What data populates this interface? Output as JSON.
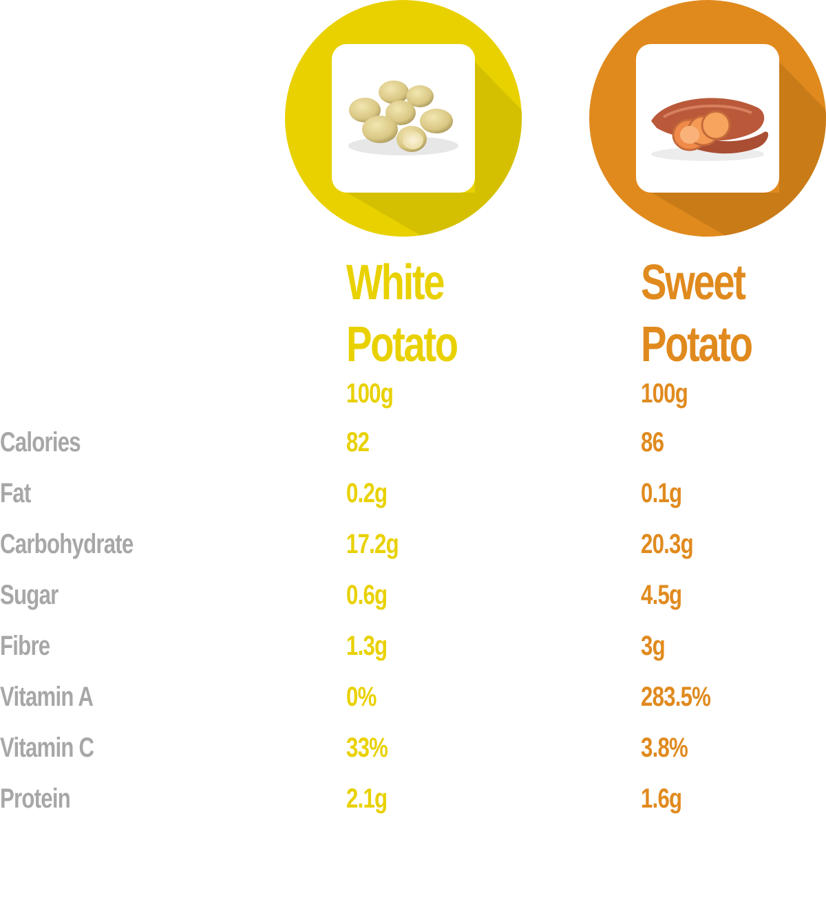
{
  "colors": {
    "white_potato": "#e9d100",
    "white_potato_shadow": "#d4c000",
    "sweet_potato": "#e08a1e",
    "sweet_potato_shadow": "#c97b18",
    "label": "#a7a7a7"
  },
  "columns": [
    {
      "id": "white",
      "title_line1": "White",
      "title_line2": "Potato",
      "serving": "100g",
      "image_icon": "white-potatoes-icon"
    },
    {
      "id": "sweet",
      "title_line1": "Sweet",
      "title_line2": "Potato",
      "serving": "100g",
      "image_icon": "sweet-potato-icon"
    }
  ],
  "rows": [
    {
      "label": "Calories",
      "white": "82",
      "sweet": "86"
    },
    {
      "label": "Fat",
      "white": "0.2g",
      "sweet": "0.1g"
    },
    {
      "label": "Carbohydrate",
      "white": "17.2g",
      "sweet": "20.3g"
    },
    {
      "label": "Sugar",
      "white": "0.6g",
      "sweet": "4.5g"
    },
    {
      "label": "Fibre",
      "white": "1.3g",
      "sweet": "3g"
    },
    {
      "label": "Vitamin A",
      "white": "0%",
      "sweet": "283.5%"
    },
    {
      "label": "Vitamin C",
      "white": "33%",
      "sweet": "3.8%"
    },
    {
      "label": "Protein",
      "white": "2.1g",
      "sweet": "1.6g"
    }
  ]
}
